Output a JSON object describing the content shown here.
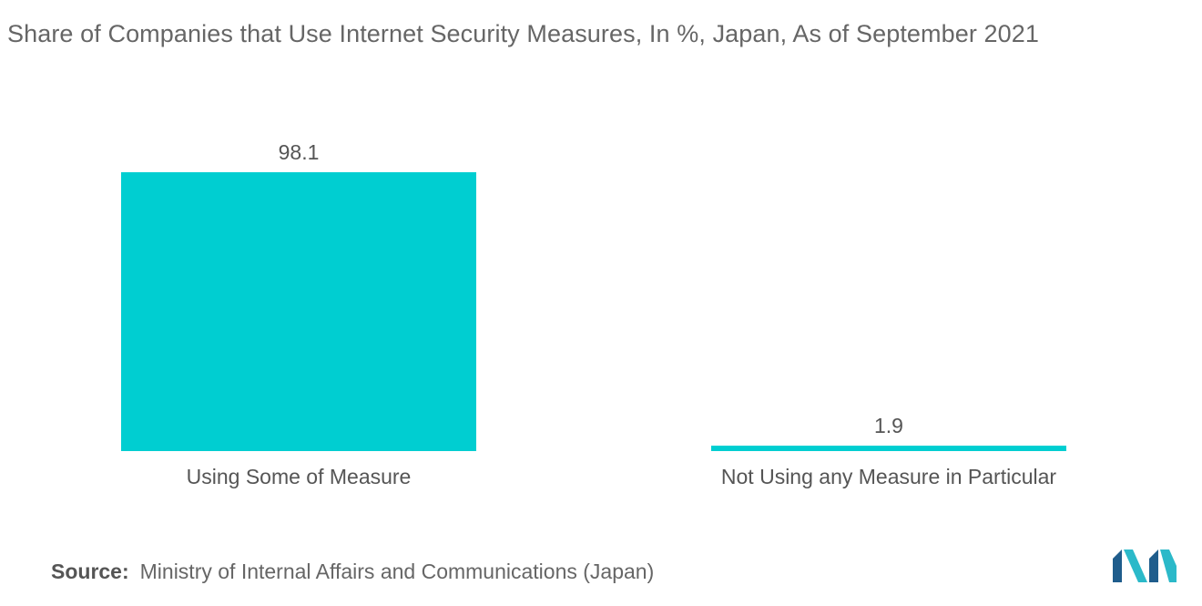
{
  "title": "Share of Companies that Use Internet Security Measures, In %, Japan, As of September 2021",
  "source": {
    "label": "Source:",
    "text": "Ministry of Internal Affairs and Communications (Japan)"
  },
  "colors": {
    "bar": "#00CED1",
    "logo_dark": "#1F5D8C",
    "logo_light": "#2BB9C9"
  },
  "chart_data": {
    "type": "bar",
    "categories": [
      "Using Some of Measure",
      "Not Using any Measure in Particular"
    ],
    "values": [
      98.1,
      1.9
    ],
    "value_labels": [
      "98.1",
      "1.9"
    ],
    "title": "Share of Companies that Use Internet Security Measures, In %, Japan, As of September 2021",
    "xlabel": "",
    "ylabel": "",
    "ylim": [
      0,
      98.1
    ],
    "grid": false,
    "legend": "none"
  }
}
